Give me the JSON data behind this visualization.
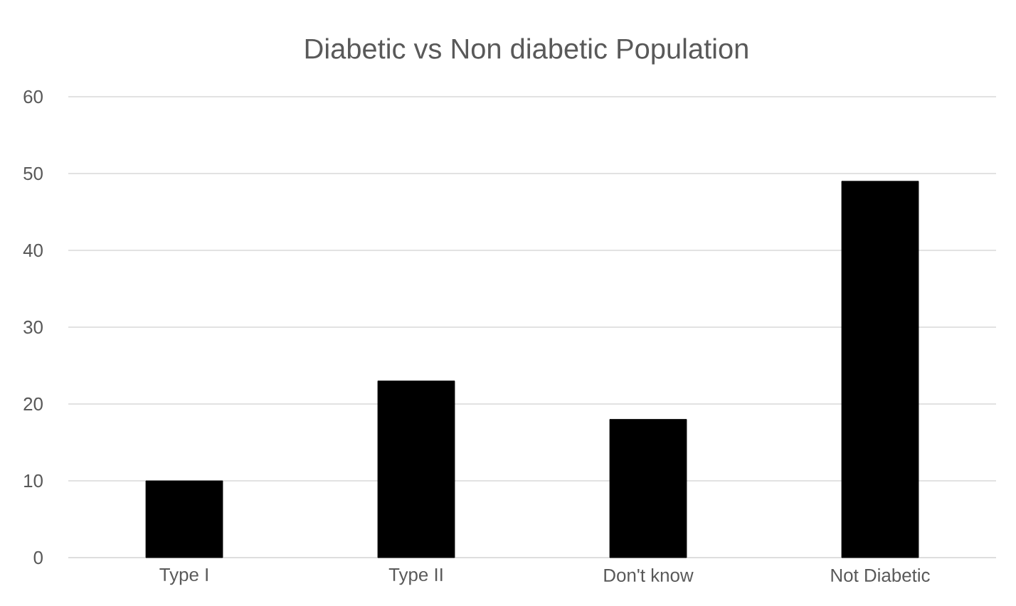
{
  "chart_data": {
    "type": "bar",
    "title": "Diabetic vs Non diabetic Population",
    "categories": [
      "Type I",
      "Type II",
      "Don't know",
      "Not Diabetic"
    ],
    "values": [
      10,
      23,
      18,
      49
    ],
    "color": "#000000",
    "ylim": [
      0,
      60
    ],
    "yticks": [
      0,
      10,
      20,
      30,
      40,
      50,
      60
    ],
    "grid": "y"
  }
}
